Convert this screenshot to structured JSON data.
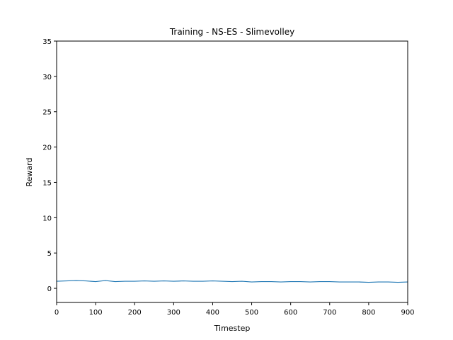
{
  "chart_data": {
    "type": "line",
    "title": "Training - NS-ES - Slimevolley",
    "xlabel": "Timestep",
    "ylabel": "Reward",
    "xlim": [
      0,
      900
    ],
    "ylim": [
      -2,
      35
    ],
    "xticks": [
      0,
      100,
      200,
      300,
      400,
      500,
      600,
      700,
      800,
      900
    ],
    "yticks": [
      0,
      5,
      10,
      15,
      20,
      25,
      30,
      35
    ],
    "grid": false,
    "legend": "none",
    "series": [
      {
        "color": "#1f77b4",
        "x": [
          0,
          25,
          50,
          75,
          100,
          125,
          150,
          175,
          200,
          225,
          250,
          275,
          300,
          325,
          350,
          375,
          400,
          425,
          450,
          475,
          500,
          525,
          550,
          575,
          600,
          625,
          650,
          675,
          700,
          725,
          750,
          775,
          800,
          825,
          850,
          875,
          900
        ],
        "values": [
          1.0,
          1.05,
          1.1,
          1.05,
          0.95,
          1.1,
          0.95,
          1.0,
          1.0,
          1.05,
          1.0,
          1.05,
          1.0,
          1.05,
          1.0,
          1.0,
          1.05,
          1.0,
          0.95,
          1.0,
          0.9,
          0.95,
          0.95,
          0.9,
          0.95,
          0.95,
          0.9,
          0.95,
          0.95,
          0.9,
          0.9,
          0.9,
          0.85,
          0.9,
          0.9,
          0.85,
          0.9
        ]
      }
    ]
  }
}
